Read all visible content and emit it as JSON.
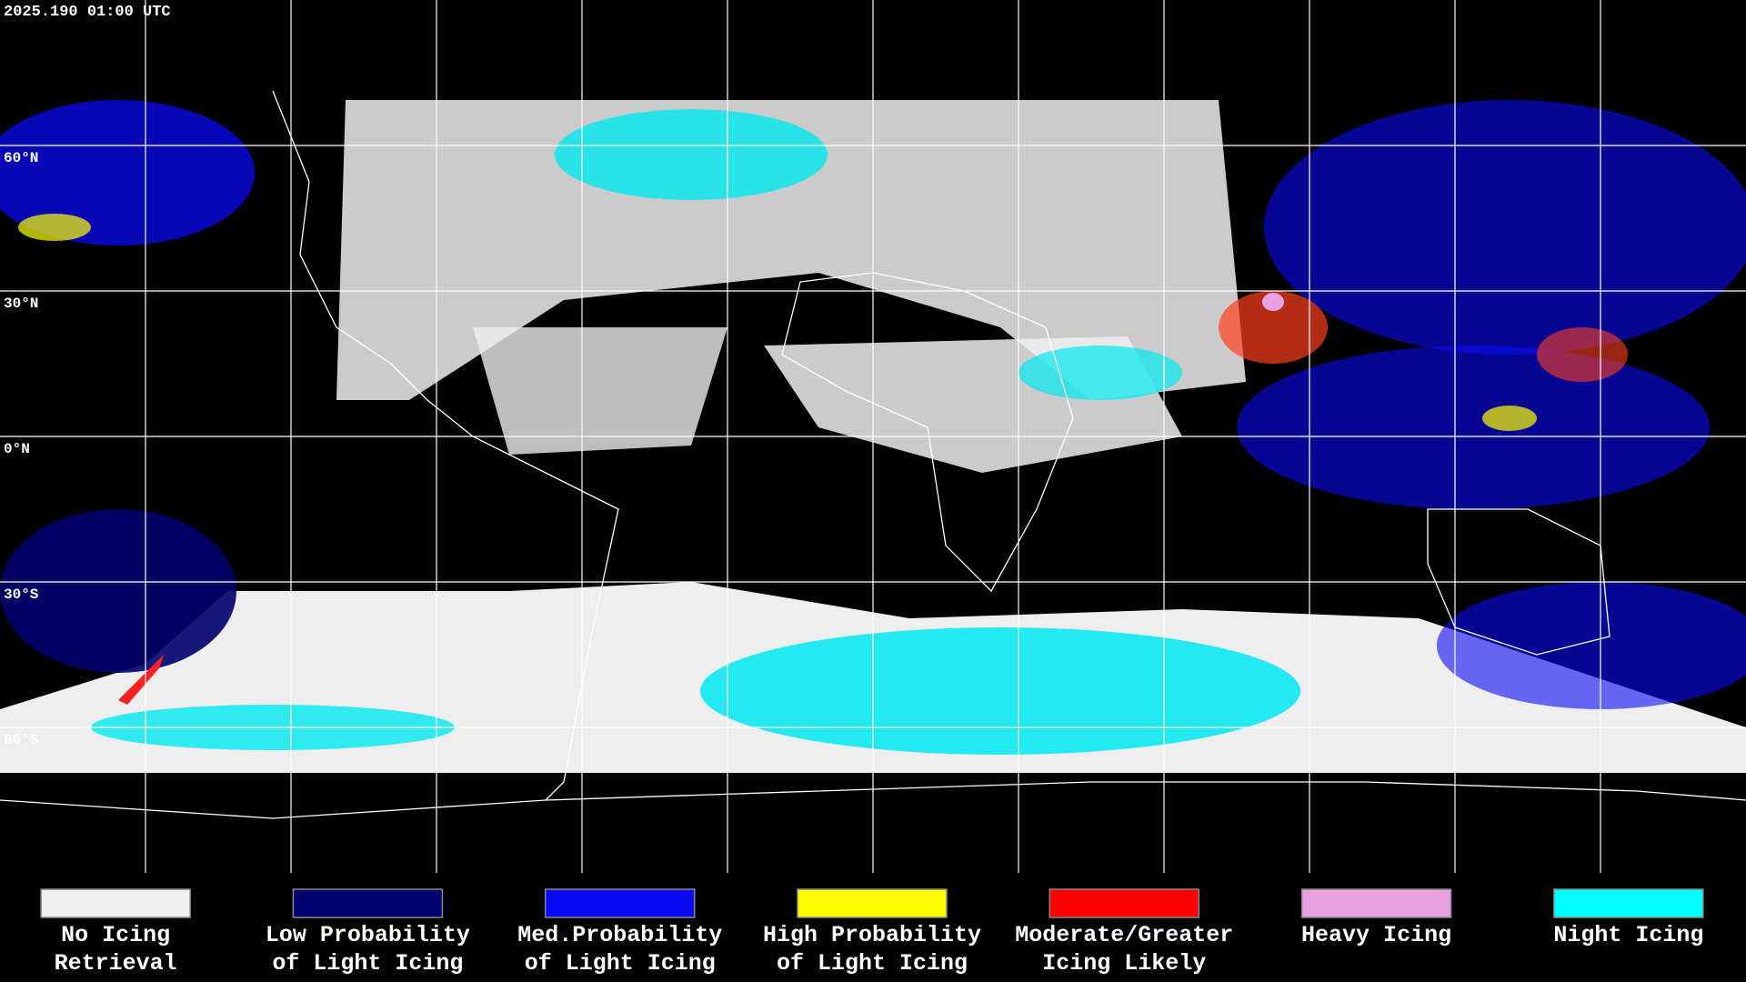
{
  "header": {
    "timestamp": "2025.190 01:00 UTC"
  },
  "map": {
    "lat_labels": [
      "60°N",
      "30°N",
      "0°N",
      "30°S",
      "60°S"
    ]
  },
  "legend": {
    "items": [
      {
        "lines": [
          "No Icing",
          "Retrieval"
        ],
        "color": "#eeeeee"
      },
      {
        "lines": [
          "Low Probability",
          "of Light Icing"
        ],
        "color": "#00006e"
      },
      {
        "lines": [
          "Med.Probability",
          "of Light Icing"
        ],
        "color": "#0a0af5"
      },
      {
        "lines": [
          "High Probability",
          "of Light Icing"
        ],
        "color": "#ffff00"
      },
      {
        "lines": [
          "Moderate/Greater",
          "Icing Likely"
        ],
        "color": "#ff0000"
      },
      {
        "lines": [
          "Heavy Icing"
        ],
        "color": "#e8a2e0"
      },
      {
        "lines": [
          "Night Icing"
        ],
        "color": "#00ffff"
      }
    ]
  }
}
